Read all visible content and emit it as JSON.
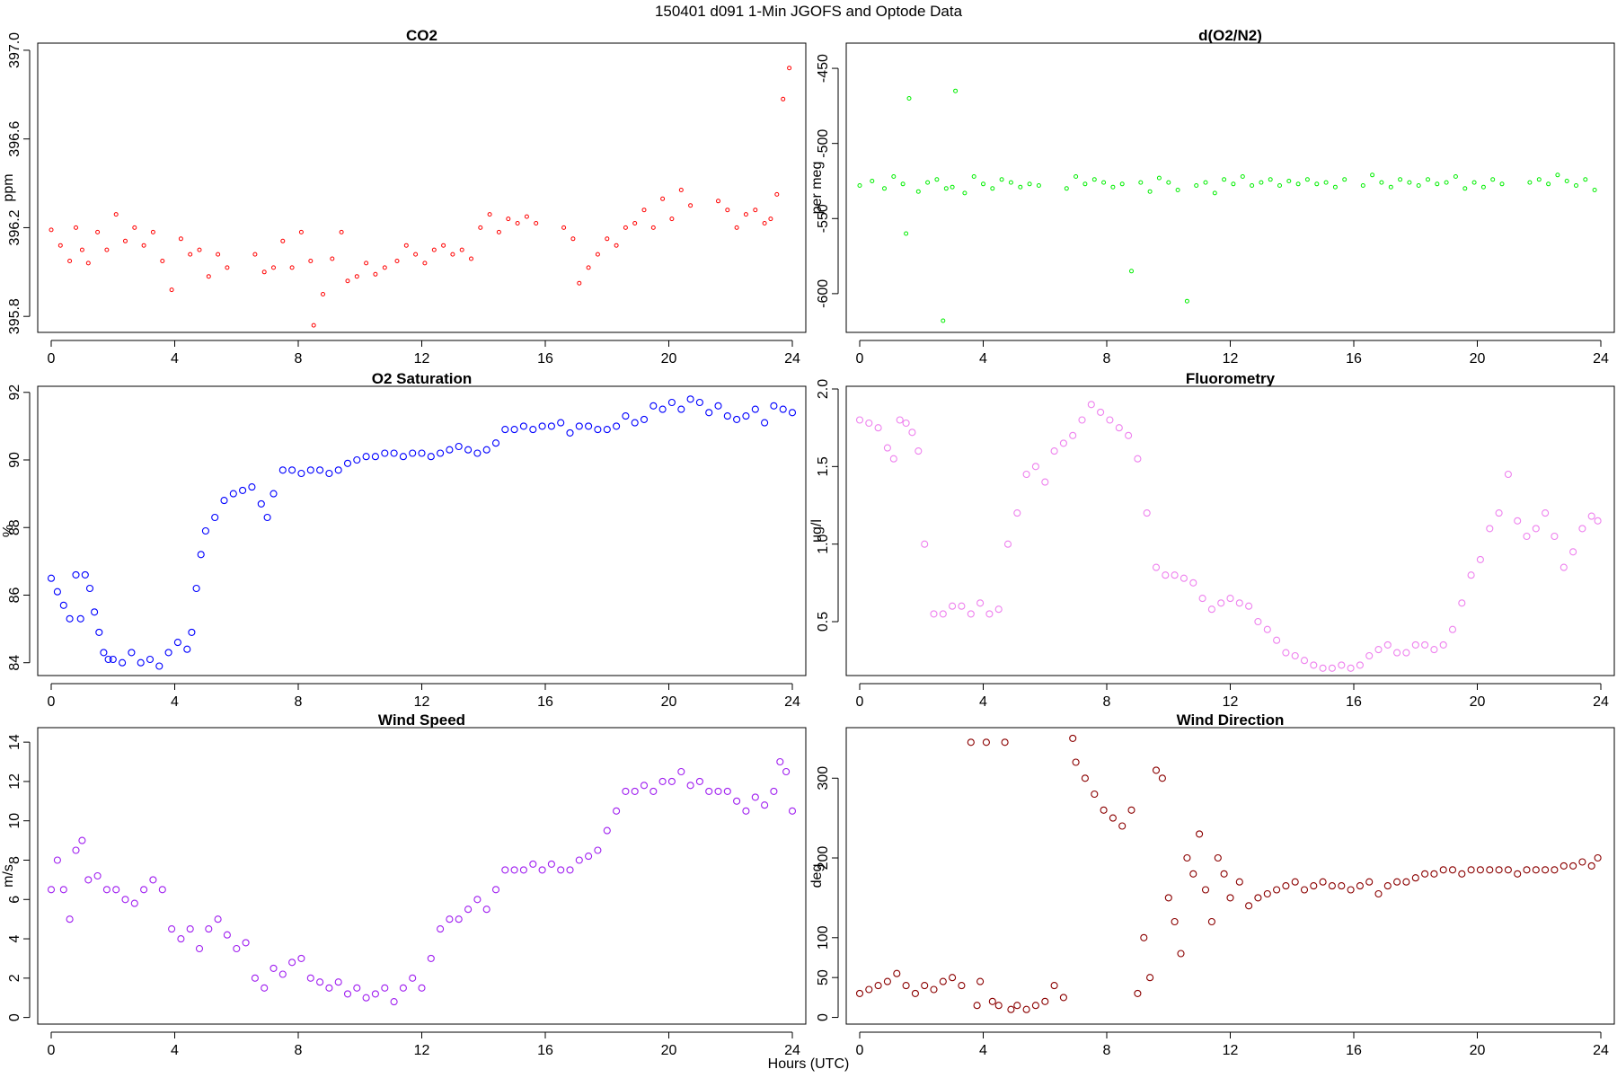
{
  "title": "150401    d091    1-Min  JGOFS and Optode Data",
  "xlabel": "Hours (UTC)",
  "chart_data": [
    {
      "type": "scatter",
      "title": "CO2",
      "ylabel": "ppm",
      "color": "#ff0000",
      "marker_size": "small",
      "xlim": [
        0,
        24
      ],
      "ylim": [
        395.74,
        397.02
      ],
      "xticks": [
        0,
        4,
        8,
        12,
        16,
        20,
        24
      ],
      "yticks": [
        395.8,
        396.2,
        396.6,
        397.0
      ],
      "ytick_labels": [
        "395.8",
        "396.2",
        "396.6",
        "397.0"
      ],
      "x": [
        0.0,
        0.3,
        0.6,
        0.8,
        1.0,
        1.2,
        1.5,
        1.8,
        2.1,
        2.4,
        2.7,
        3.0,
        3.3,
        3.6,
        3.9,
        4.2,
        4.5,
        4.8,
        5.1,
        5.4,
        5.7,
        6.6,
        6.9,
        7.2,
        7.5,
        7.8,
        8.1,
        8.4,
        8.5,
        8.8,
        9.1,
        9.4,
        9.6,
        9.9,
        10.2,
        10.5,
        10.8,
        11.2,
        11.5,
        11.8,
        12.1,
        12.4,
        12.7,
        13.0,
        13.3,
        13.6,
        13.9,
        14.2,
        14.5,
        14.8,
        15.1,
        15.4,
        15.7,
        16.6,
        16.9,
        17.1,
        17.4,
        17.7,
        18.0,
        18.3,
        18.6,
        18.9,
        19.2,
        19.5,
        19.8,
        20.1,
        20.4,
        20.7,
        21.6,
        21.9,
        22.2,
        22.5,
        22.8,
        23.1,
        23.3,
        23.5,
        23.7,
        23.9
      ],
      "y": [
        396.19,
        396.12,
        396.05,
        396.2,
        396.1,
        396.04,
        396.18,
        396.1,
        396.26,
        396.14,
        396.2,
        396.12,
        396.18,
        396.05,
        395.92,
        396.15,
        396.08,
        396.1,
        395.98,
        396.08,
        396.02,
        396.08,
        396.0,
        396.02,
        396.14,
        396.02,
        396.18,
        396.05,
        395.76,
        395.9,
        396.06,
        396.18,
        395.96,
        395.98,
        396.04,
        395.99,
        396.02,
        396.05,
        396.12,
        396.08,
        396.04,
        396.1,
        396.12,
        396.08,
        396.1,
        396.06,
        396.2,
        396.26,
        396.18,
        396.24,
        396.22,
        396.25,
        396.22,
        396.2,
        396.15,
        395.95,
        396.02,
        396.08,
        396.15,
        396.12,
        396.2,
        396.22,
        396.28,
        396.2,
        396.33,
        396.24,
        396.37,
        396.3,
        396.32,
        396.28,
        396.2,
        396.26,
        396.28,
        396.22,
        396.24,
        396.35,
        396.78,
        396.92
      ]
    },
    {
      "type": "scatter",
      "title": "d(O2/N2)",
      "ylabel": "per meg",
      "color": "#00ee00",
      "marker_size": "small",
      "xlim": [
        0,
        24
      ],
      "ylim": [
        -624,
        -435
      ],
      "xticks": [
        0,
        4,
        8,
        12,
        16,
        20,
        24
      ],
      "yticks": [
        -600,
        -550,
        -500,
        -450
      ],
      "ytick_labels": [
        "-600",
        "-550",
        "-500",
        "-450"
      ],
      "x": [
        0.0,
        0.4,
        0.8,
        1.1,
        1.4,
        1.5,
        1.6,
        1.9,
        2.2,
        2.5,
        2.7,
        2.8,
        3.0,
        3.1,
        3.4,
        3.7,
        4.0,
        4.3,
        4.6,
        4.9,
        5.2,
        5.5,
        5.8,
        6.7,
        7.0,
        7.3,
        7.6,
        7.9,
        8.2,
        8.5,
        8.8,
        9.1,
        9.4,
        9.7,
        10.0,
        10.3,
        10.6,
        10.9,
        11.2,
        11.5,
        11.8,
        12.1,
        12.4,
        12.7,
        13.0,
        13.3,
        13.6,
        13.9,
        14.2,
        14.5,
        14.8,
        15.1,
        15.4,
        15.7,
        16.3,
        16.6,
        16.9,
        17.2,
        17.5,
        17.8,
        18.1,
        18.4,
        18.7,
        19.0,
        19.3,
        19.6,
        19.9,
        20.2,
        20.5,
        20.8,
        21.7,
        22.0,
        22.3,
        22.6,
        22.9,
        23.2,
        23.5,
        23.8
      ],
      "y": [
        -528,
        -525,
        -530,
        -522,
        -527,
        -560,
        -470,
        -532,
        -526,
        -524,
        -618,
        -530,
        -529,
        -465,
        -533,
        -522,
        -527,
        -530,
        -524,
        -526,
        -529,
        -527,
        -528,
        -530,
        -522,
        -527,
        -524,
        -526,
        -529,
        -527,
        -585,
        -526,
        -532,
        -523,
        -526,
        -531,
        -605,
        -528,
        -526,
        -533,
        -524,
        -527,
        -522,
        -528,
        -526,
        -524,
        -528,
        -525,
        -527,
        -524,
        -527,
        -526,
        -529,
        -524,
        -528,
        -521,
        -526,
        -529,
        -524,
        -526,
        -528,
        -524,
        -527,
        -526,
        -522,
        -530,
        -526,
        -529,
        -524,
        -527,
        -526,
        -524,
        -527,
        -521,
        -525,
        -528,
        -524,
        -531
      ]
    },
    {
      "type": "scatter",
      "title": "O2 Saturation",
      "ylabel": "%",
      "color": "#0000ff",
      "marker_size": "large",
      "xlim": [
        0,
        24
      ],
      "ylim": [
        83.7,
        92.1
      ],
      "xticks": [
        0,
        4,
        8,
        12,
        16,
        20,
        24
      ],
      "yticks": [
        84,
        86,
        88,
        90,
        92
      ],
      "ytick_labels": [
        "84",
        "86",
        "88",
        "90",
        "92"
      ],
      "x": [
        0.0,
        0.2,
        0.4,
        0.6,
        0.8,
        0.95,
        1.1,
        1.25,
        1.4,
        1.55,
        1.7,
        1.85,
        2.0,
        2.3,
        2.6,
        2.9,
        3.2,
        3.5,
        3.8,
        4.1,
        4.4,
        4.55,
        4.7,
        4.85,
        5.0,
        5.3,
        5.6,
        5.9,
        6.2,
        6.5,
        6.8,
        7.0,
        7.2,
        7.5,
        7.8,
        8.1,
        8.4,
        8.7,
        9.0,
        9.3,
        9.6,
        9.9,
        10.2,
        10.5,
        10.8,
        11.1,
        11.4,
        11.7,
        12.0,
        12.3,
        12.6,
        12.9,
        13.2,
        13.5,
        13.8,
        14.1,
        14.4,
        14.7,
        15.0,
        15.3,
        15.6,
        15.9,
        16.2,
        16.5,
        16.8,
        17.1,
        17.4,
        17.7,
        18.0,
        18.3,
        18.6,
        18.9,
        19.2,
        19.5,
        19.8,
        20.1,
        20.4,
        20.7,
        21.0,
        21.3,
        21.6,
        21.9,
        22.2,
        22.5,
        22.8,
        23.1,
        23.4,
        23.7,
        24.0
      ],
      "y": [
        86.5,
        86.1,
        85.7,
        85.3,
        86.6,
        85.3,
        86.6,
        86.2,
        85.5,
        84.9,
        84.3,
        84.1,
        84.1,
        84.0,
        84.3,
        84.0,
        84.1,
        83.9,
        84.3,
        84.6,
        84.4,
        84.9,
        86.2,
        87.2,
        87.9,
        88.3,
        88.8,
        89.0,
        89.1,
        89.2,
        88.7,
        88.3,
        89.0,
        89.7,
        89.7,
        89.6,
        89.7,
        89.7,
        89.6,
        89.7,
        89.9,
        90.0,
        90.1,
        90.1,
        90.2,
        90.2,
        90.1,
        90.2,
        90.2,
        90.1,
        90.2,
        90.3,
        90.4,
        90.3,
        90.2,
        90.3,
        90.5,
        90.9,
        90.9,
        91.0,
        90.9,
        91.0,
        91.0,
        91.1,
        90.8,
        91.0,
        91.0,
        90.9,
        90.9,
        91.0,
        91.3,
        91.1,
        91.2,
        91.6,
        91.5,
        91.7,
        91.5,
        91.8,
        91.7,
        91.4,
        91.6,
        91.3,
        91.2,
        91.3,
        91.5,
        91.1,
        91.6,
        91.5,
        91.4
      ]
    },
    {
      "type": "scatter",
      "title": "Fluorometry",
      "ylabel": "ug/l",
      "color": "#ee82ee",
      "marker_size": "large",
      "xlim": [
        0,
        24
      ],
      "ylim": [
        0.17,
        2.0
      ],
      "xticks": [
        0,
        4,
        8,
        12,
        16,
        20,
        24
      ],
      "yticks": [
        0.5,
        1.0,
        1.5,
        2.0
      ],
      "ytick_labels": [
        "0.5",
        "1.0",
        "1.5",
        "2.0"
      ],
      "x": [
        0.0,
        0.3,
        0.6,
        0.9,
        1.1,
        1.3,
        1.5,
        1.7,
        1.9,
        2.1,
        2.4,
        2.7,
        3.0,
        3.3,
        3.6,
        3.9,
        4.2,
        4.5,
        4.8,
        5.1,
        5.4,
        5.7,
        6.0,
        6.3,
        6.6,
        6.9,
        7.2,
        7.5,
        7.8,
        8.1,
        8.4,
        8.7,
        9.0,
        9.3,
        9.6,
        9.9,
        10.2,
        10.5,
        10.8,
        11.1,
        11.4,
        11.7,
        12.0,
        12.3,
        12.6,
        12.9,
        13.2,
        13.5,
        13.8,
        14.1,
        14.4,
        14.7,
        15.0,
        15.3,
        15.6,
        15.9,
        16.2,
        16.5,
        16.8,
        17.1,
        17.4,
        17.7,
        18.0,
        18.3,
        18.6,
        18.9,
        19.2,
        19.5,
        19.8,
        20.1,
        20.4,
        20.7,
        21.0,
        21.3,
        21.6,
        21.9,
        22.2,
        22.5,
        22.8,
        23.1,
        23.4,
        23.7,
        23.9
      ],
      "y": [
        1.8,
        1.78,
        1.75,
        1.62,
        1.55,
        1.8,
        1.78,
        1.72,
        1.6,
        1.0,
        0.55,
        0.55,
        0.6,
        0.6,
        0.55,
        0.62,
        0.55,
        0.58,
        1.0,
        1.2,
        1.45,
        1.5,
        1.4,
        1.6,
        1.65,
        1.7,
        1.8,
        1.9,
        1.85,
        1.8,
        1.75,
        1.7,
        1.55,
        1.2,
        0.85,
        0.8,
        0.8,
        0.78,
        0.75,
        0.65,
        0.58,
        0.62,
        0.65,
        0.62,
        0.6,
        0.5,
        0.45,
        0.38,
        0.3,
        0.28,
        0.25,
        0.22,
        0.2,
        0.2,
        0.22,
        0.2,
        0.22,
        0.28,
        0.32,
        0.35,
        0.3,
        0.3,
        0.35,
        0.35,
        0.32,
        0.35,
        0.45,
        0.62,
        0.8,
        0.9,
        1.1,
        1.2,
        1.45,
        1.15,
        1.05,
        1.1,
        1.2,
        1.05,
        0.85,
        0.95,
        1.1,
        1.18,
        1.15
      ]
    },
    {
      "type": "scatter",
      "title": "Wind Speed",
      "ylabel": "m/s",
      "color": "#a020f0",
      "marker_size": "large",
      "xlim": [
        0,
        24
      ],
      "ylim": [
        -0.2,
        14.6
      ],
      "xticks": [
        0,
        4,
        8,
        12,
        16,
        20,
        24
      ],
      "yticks": [
        0,
        2,
        4,
        6,
        8,
        10,
        12,
        14
      ],
      "ytick_labels": [
        "0",
        "2",
        "4",
        "6",
        "8",
        "10",
        "12",
        "14"
      ],
      "x": [
        0.0,
        0.2,
        0.4,
        0.6,
        0.8,
        1.0,
        1.2,
        1.5,
        1.8,
        2.1,
        2.4,
        2.7,
        3.0,
        3.3,
        3.6,
        3.9,
        4.2,
        4.5,
        4.8,
        5.1,
        5.4,
        5.7,
        6.0,
        6.3,
        6.6,
        6.9,
        7.2,
        7.5,
        7.8,
        8.1,
        8.4,
        8.7,
        9.0,
        9.3,
        9.6,
        9.9,
        10.2,
        10.5,
        10.8,
        11.1,
        11.4,
        11.7,
        12.0,
        12.3,
        12.6,
        12.9,
        13.2,
        13.5,
        13.8,
        14.1,
        14.4,
        14.7,
        15.0,
        15.3,
        15.6,
        15.9,
        16.2,
        16.5,
        16.8,
        17.1,
        17.4,
        17.7,
        18.0,
        18.3,
        18.6,
        18.9,
        19.2,
        19.5,
        19.8,
        20.1,
        20.4,
        20.7,
        21.0,
        21.3,
        21.6,
        21.9,
        22.2,
        22.5,
        22.8,
        23.1,
        23.4,
        23.6,
        23.8,
        24.0
      ],
      "y": [
        6.5,
        8.0,
        6.5,
        5.0,
        8.5,
        9.0,
        7.0,
        7.2,
        6.5,
        6.5,
        6.0,
        5.8,
        6.5,
        7.0,
        6.5,
        4.5,
        4.0,
        4.5,
        3.5,
        4.5,
        5.0,
        4.2,
        3.5,
        3.8,
        2.0,
        1.5,
        2.5,
        2.2,
        2.8,
        3.0,
        2.0,
        1.8,
        1.5,
        1.8,
        1.2,
        1.5,
        1.0,
        1.2,
        1.5,
        0.8,
        1.5,
        2.0,
        1.5,
        3.0,
        4.5,
        5.0,
        5.0,
        5.5,
        6.0,
        5.5,
        6.5,
        7.5,
        7.5,
        7.5,
        7.8,
        7.5,
        7.8,
        7.5,
        7.5,
        8.0,
        8.2,
        8.5,
        9.5,
        10.5,
        11.5,
        11.5,
        11.8,
        11.5,
        12.0,
        12.0,
        12.5,
        11.8,
        12.0,
        11.5,
        11.5,
        11.5,
        11.0,
        10.5,
        11.2,
        10.8,
        11.5,
        13.0,
        12.5,
        10.5
      ]
    },
    {
      "type": "scatter",
      "title": "Wind Direction",
      "ylabel": "deg",
      "color": "#8b0000",
      "marker_size": "large",
      "xlim": [
        0,
        24
      ],
      "ylim": [
        -5,
        360
      ],
      "xticks": [
        0,
        4,
        8,
        12,
        16,
        20,
        24
      ],
      "yticks": [
        0,
        50,
        100,
        200,
        300
      ],
      "ytick_labels": [
        "0",
        "50",
        "100",
        "200",
        "300"
      ],
      "x": [
        0.0,
        0.3,
        0.6,
        0.9,
        1.2,
        1.5,
        1.8,
        2.1,
        2.4,
        2.7,
        3.0,
        3.3,
        3.6,
        3.8,
        3.9,
        4.1,
        4.3,
        4.5,
        4.7,
        4.9,
        5.1,
        5.4,
        5.7,
        6.0,
        6.3,
        6.6,
        6.9,
        7.0,
        7.3,
        7.6,
        7.9,
        8.2,
        8.5,
        8.8,
        9.0,
        9.2,
        9.4,
        9.6,
        9.8,
        10.0,
        10.2,
        10.4,
        10.6,
        10.8,
        11.0,
        11.2,
        11.4,
        11.6,
        11.8,
        12.0,
        12.3,
        12.6,
        12.9,
        13.2,
        13.5,
        13.8,
        14.1,
        14.4,
        14.7,
        15.0,
        15.3,
        15.6,
        15.9,
        16.2,
        16.5,
        16.8,
        17.1,
        17.4,
        17.7,
        18.0,
        18.3,
        18.6,
        18.9,
        19.2,
        19.5,
        19.8,
        20.1,
        20.4,
        20.7,
        21.0,
        21.3,
        21.6,
        21.9,
        22.2,
        22.5,
        22.8,
        23.1,
        23.4,
        23.7,
        23.9
      ],
      "y": [
        30,
        35,
        40,
        45,
        55,
        40,
        30,
        40,
        35,
        45,
        50,
        40,
        345,
        15,
        45,
        345,
        20,
        15,
        345,
        10,
        15,
        10,
        15,
        20,
        40,
        25,
        350,
        320,
        300,
        280,
        260,
        250,
        240,
        260,
        30,
        100,
        50,
        310,
        300,
        150,
        120,
        80,
        200,
        180,
        230,
        160,
        120,
        200,
        180,
        150,
        170,
        140,
        150,
        155,
        160,
        165,
        170,
        160,
        165,
        170,
        165,
        165,
        160,
        165,
        170,
        155,
        165,
        170,
        170,
        175,
        180,
        180,
        185,
        185,
        180,
        185,
        185,
        185,
        185,
        185,
        180,
        185,
        185,
        185,
        185,
        190,
        190,
        195,
        190,
        200
      ]
    }
  ]
}
